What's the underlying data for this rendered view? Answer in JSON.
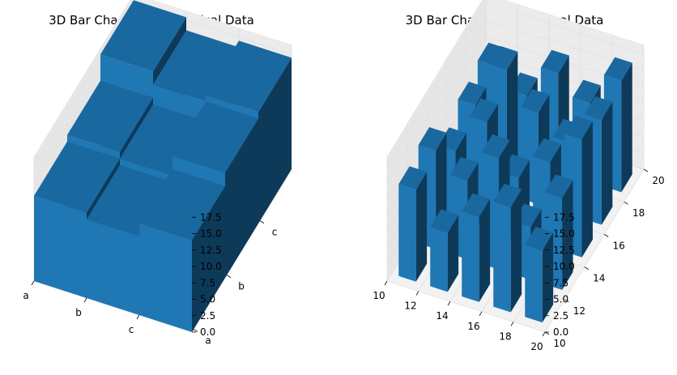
{
  "figure": {
    "left_title": "3D Bar Chart for Categorical Data",
    "right_title": "3D Bar Chart for Numerical Data"
  },
  "colors": {
    "bar_face": "#1f77b4",
    "bar_top": "#1a68a0",
    "bar_side": "#0e3a5a",
    "pane": "#f2f2f2",
    "grid": "#e0e0e0"
  },
  "chart_data": [
    {
      "type": "bar3d",
      "title": "3D Bar Chart for Categorical Data",
      "x_categories": [
        "a",
        "b",
        "c"
      ],
      "y_categories": [
        "a",
        "b",
        "c"
      ],
      "z_ticks": [
        "0.0",
        "2.5",
        "5.0",
        "7.5",
        "10.0",
        "12.5",
        "15.0",
        "17.5"
      ],
      "zlim": [
        0,
        19
      ],
      "grid": true,
      "bars": [
        {
          "x": "a",
          "y": "a",
          "z": 13
        },
        {
          "x": "b",
          "y": "a",
          "z": 12
        },
        {
          "x": "c",
          "y": "a",
          "z": 14
        },
        {
          "x": "a",
          "y": "b",
          "z": 14
        },
        {
          "x": "b",
          "y": "b",
          "z": 13
        },
        {
          "x": "c",
          "y": "b",
          "z": 16
        },
        {
          "x": "a",
          "y": "c",
          "z": 18
        },
        {
          "x": "b",
          "y": "c",
          "z": 16
        },
        {
          "x": "c",
          "y": "c",
          "z": 17
        }
      ]
    },
    {
      "type": "bar3d",
      "title": "3D Bar Chart for Numerical Data",
      "x_ticks": [
        "10",
        "12",
        "14",
        "16",
        "18",
        "20"
      ],
      "y_ticks": [
        "10",
        "12",
        "14",
        "16",
        "18",
        "20"
      ],
      "z_ticks": [
        "0.0",
        "2.5",
        "5.0",
        "7.5",
        "10.0",
        "12.5",
        "15.0",
        "17.5"
      ],
      "xlim": [
        10,
        20
      ],
      "ylim": [
        10,
        20
      ],
      "zlim": [
        0,
        19
      ],
      "grid": true,
      "bars": [
        {
          "x": 11,
          "y": 11,
          "z": 14
        },
        {
          "x": 13,
          "y": 11,
          "z": 9
        },
        {
          "x": 15,
          "y": 11,
          "z": 13
        },
        {
          "x": 17,
          "y": 11,
          "z": 16
        },
        {
          "x": 19,
          "y": 11,
          "z": 11
        },
        {
          "x": 11,
          "y": 13,
          "z": 15
        },
        {
          "x": 13,
          "y": 13,
          "z": 12
        },
        {
          "x": 15,
          "y": 13,
          "z": 17
        },
        {
          "x": 17,
          "y": 13,
          "z": 8
        },
        {
          "x": 19,
          "y": 13,
          "z": 14
        },
        {
          "x": 11,
          "y": 15,
          "z": 10
        },
        {
          "x": 13,
          "y": 15,
          "z": 16
        },
        {
          "x": 15,
          "y": 15,
          "z": 9
        },
        {
          "x": 17,
          "y": 15,
          "z": 13
        },
        {
          "x": 19,
          "y": 15,
          "z": 18
        },
        {
          "x": 11,
          "y": 17,
          "z": 12
        },
        {
          "x": 13,
          "y": 17,
          "z": 19
        },
        {
          "x": 15,
          "y": 17,
          "z": 14
        },
        {
          "x": 17,
          "y": 17,
          "z": 11
        },
        {
          "x": 19,
          "y": 17,
          "z": 16
        },
        {
          "x": 11,
          "y": 19,
          "z": 13
        },
        {
          "x": 13,
          "y": 19,
          "z": 10
        },
        {
          "x": 15,
          "y": 19,
          "z": 15
        },
        {
          "x": 17,
          "y": 19,
          "z": 12
        },
        {
          "x": 19,
          "y": 19,
          "z": 17
        }
      ]
    }
  ]
}
